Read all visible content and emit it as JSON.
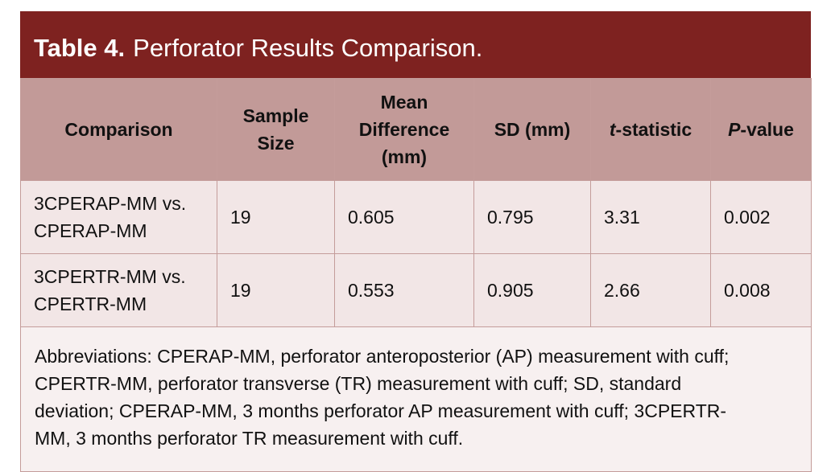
{
  "title": {
    "label": "Table 4.",
    "text": "Perforator Results Comparison."
  },
  "colors": {
    "title_bg": "#7E2220",
    "header_bg": "#C29A98",
    "row_bg": "#F2E6E6",
    "border": "#C49C9A"
  },
  "headers": {
    "comparison": "Comparison",
    "sample_size": "Sample Size",
    "mean_diff": "Mean Difference (mm)",
    "sd": "SD (mm)",
    "t_italic": "t",
    "t_rest": "-statistic",
    "p_italic": "P",
    "p_rest": "-value"
  },
  "rows": [
    {
      "comparison": "3CPERAP-MM vs. CPERAP-MM",
      "n": "19",
      "mean_diff": "0.605",
      "sd": "0.795",
      "t": "3.31",
      "p": "0.002"
    },
    {
      "comparison": "3CPERTR-MM vs. CPERTR-MM",
      "n": "19",
      "mean_diff": "0.553",
      "sd": "0.905",
      "t": "2.66",
      "p": "0.008"
    }
  ],
  "footnote": "Abbreviations: CPERAP-MM, perforator anteroposterior (AP) measurement with cuff; CPERTR-MM, perforator transverse (TR) measurement with cuff; SD, standard deviation; CPERAP-MM, 3 months perforator AP measurement with cuff; 3CPERTR-MM, 3 months perforator TR measurement with cuff."
}
